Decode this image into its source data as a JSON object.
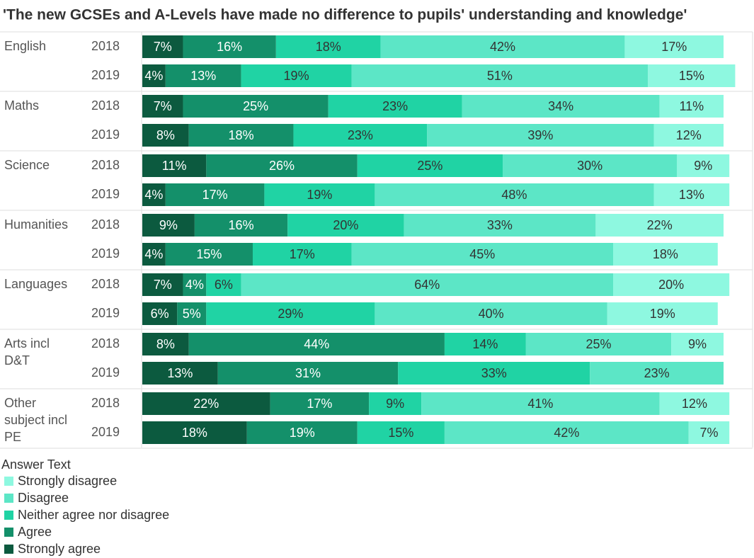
{
  "chart_data": {
    "type": "stacked-bar",
    "title": "'The new GCSEs and A-Levels have made no difference to pupils' understanding and knowledge'",
    "groups": [
      "English",
      "Maths",
      "Science",
      "Humanities",
      "Languages",
      "Arts incl D&T",
      "Other subject incl PE"
    ],
    "categories": [
      "2018",
      "2019",
      "2018",
      "2019",
      "2018",
      "2019",
      "2018",
      "2019",
      "2018",
      "2019",
      "2018",
      "2019",
      "2018",
      "2019"
    ],
    "xlim": [
      0,
      100
    ],
    "legend_title": "Answer Text",
    "series": [
      {
        "name": "Strongly agree",
        "color": "#0c5a3f",
        "values": [
          7,
          4,
          7,
          8,
          11,
          4,
          9,
          4,
          7,
          6,
          8,
          13,
          22,
          18
        ],
        "value_labels": [
          "7%",
          "4%",
          "7%",
          "8%",
          "11%",
          "4%",
          "9%",
          "4%",
          "7%",
          "6%",
          "8%",
          "13%",
          "22%",
          "18%"
        ]
      },
      {
        "name": "Agree",
        "color": "#14906a",
        "values": [
          16,
          13,
          25,
          18,
          26,
          17,
          16,
          15,
          4,
          5,
          44,
          31,
          17,
          19
        ],
        "value_labels": [
          "16%",
          "13%",
          "25%",
          "18%",
          "26%",
          "17%",
          "16%",
          "15%",
          "4%",
          "5%",
          "44%",
          "31%",
          "17%",
          "19%"
        ]
      },
      {
        "name": "Neither agree nor disagree",
        "color": "#20d3a4",
        "values": [
          18,
          19,
          23,
          23,
          25,
          19,
          20,
          17,
          6,
          29,
          14,
          33,
          9,
          15
        ],
        "value_labels": [
          "18%",
          "19%",
          "23%",
          "23%",
          "25%",
          "19%",
          "20%",
          "17%",
          "6%",
          "29%",
          "14%",
          "33%",
          "9%",
          "15%"
        ]
      },
      {
        "name": "Disagree",
        "color": "#5ce6c6",
        "values": [
          42,
          51,
          34,
          39,
          30,
          48,
          33,
          45,
          64,
          40,
          25,
          23,
          41,
          42
        ],
        "value_labels": [
          "42%",
          "51%",
          "34%",
          "39%",
          "30%",
          "48%",
          "33%",
          "45%",
          "64%",
          "40%",
          "25%",
          "23%",
          "41%",
          "42%"
        ]
      },
      {
        "name": "Strongly disagree",
        "color": "#8ef8e0",
        "values": [
          17,
          15,
          11,
          12,
          9,
          13,
          22,
          18,
          20,
          19,
          9,
          null,
          12,
          7
        ],
        "value_labels": [
          "17%",
          "15%",
          "11%",
          "12%",
          "9%",
          "13%",
          "22%",
          "18%",
          "20%",
          "19%",
          "9%",
          null,
          "12%",
          "7%"
        ]
      }
    ]
  }
}
